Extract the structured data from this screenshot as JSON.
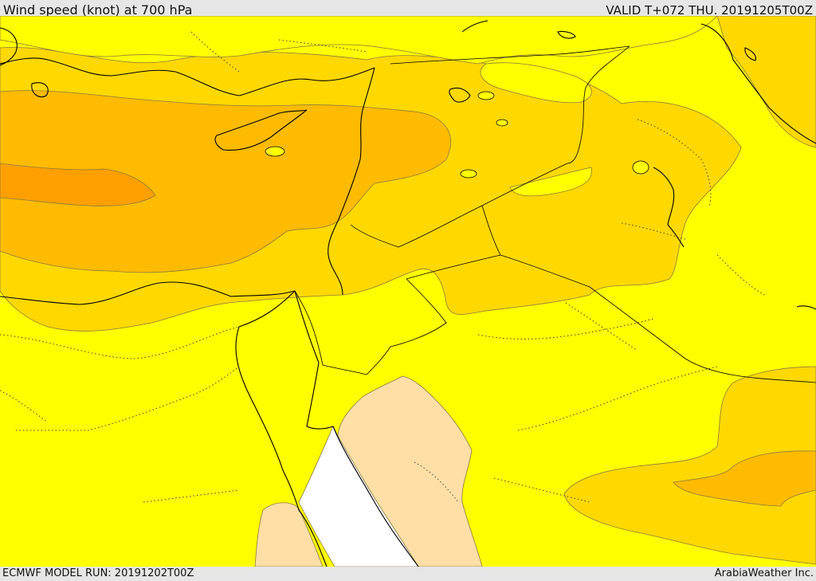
{
  "header": {
    "title": "Wind speed (knot) at 700 hPa",
    "valid": "VALID T+072 THU. 20191205T00Z"
  },
  "footer": {
    "model_run": "ECMWF MODEL RUN: 20191202T00Z",
    "brand": "ArabiaWeather Inc."
  },
  "colors": {
    "band_lowest": "#ffffff",
    "band_low": "#ffdfa6",
    "band_mid": "#ffff00",
    "band_high": "#ffd800",
    "band_higher": "#ffbb00",
    "band_highest": "#ffa000",
    "coastline": "#000000",
    "border_dotted": "#444444",
    "contour": "#8a7a40"
  }
}
